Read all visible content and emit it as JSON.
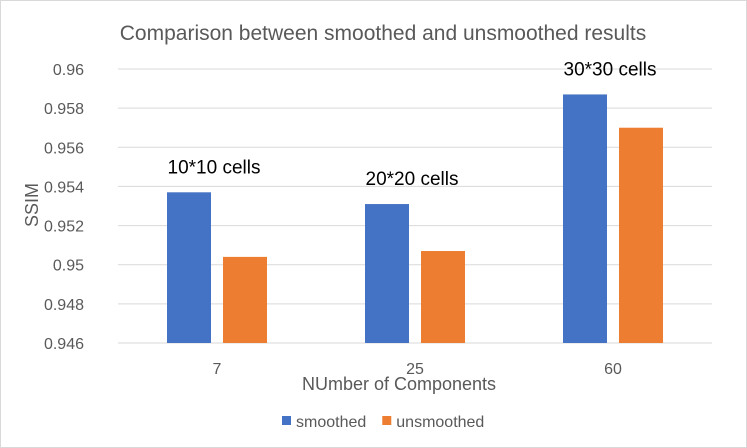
{
  "chart_data": {
    "type": "bar",
    "title": "Comparison between smoothed and unsmoothed results",
    "xlabel": "NUmber of Components",
    "ylabel": "SSIM",
    "categories": [
      "7",
      "25",
      "60"
    ],
    "series": [
      {
        "name": "smoothed",
        "values": [
          0.9537,
          0.9531,
          0.9587
        ]
      },
      {
        "name": "unsmoothed",
        "values": [
          0.9504,
          0.9507,
          0.957
        ]
      }
    ],
    "ylim": [
      0.946,
      0.96
    ],
    "yticks": [
      "0.946",
      "0.948",
      "0.95",
      "0.952",
      "0.954",
      "0.956",
      "0.958",
      "0.96"
    ],
    "annotations": [
      "10*10 cells",
      "20*20 cells",
      "30*30 cells"
    ],
    "grid": true,
    "legend_position": "bottom",
    "colors": {
      "smoothed": "#4472C4",
      "unsmoothed": "#ED7D31"
    }
  }
}
